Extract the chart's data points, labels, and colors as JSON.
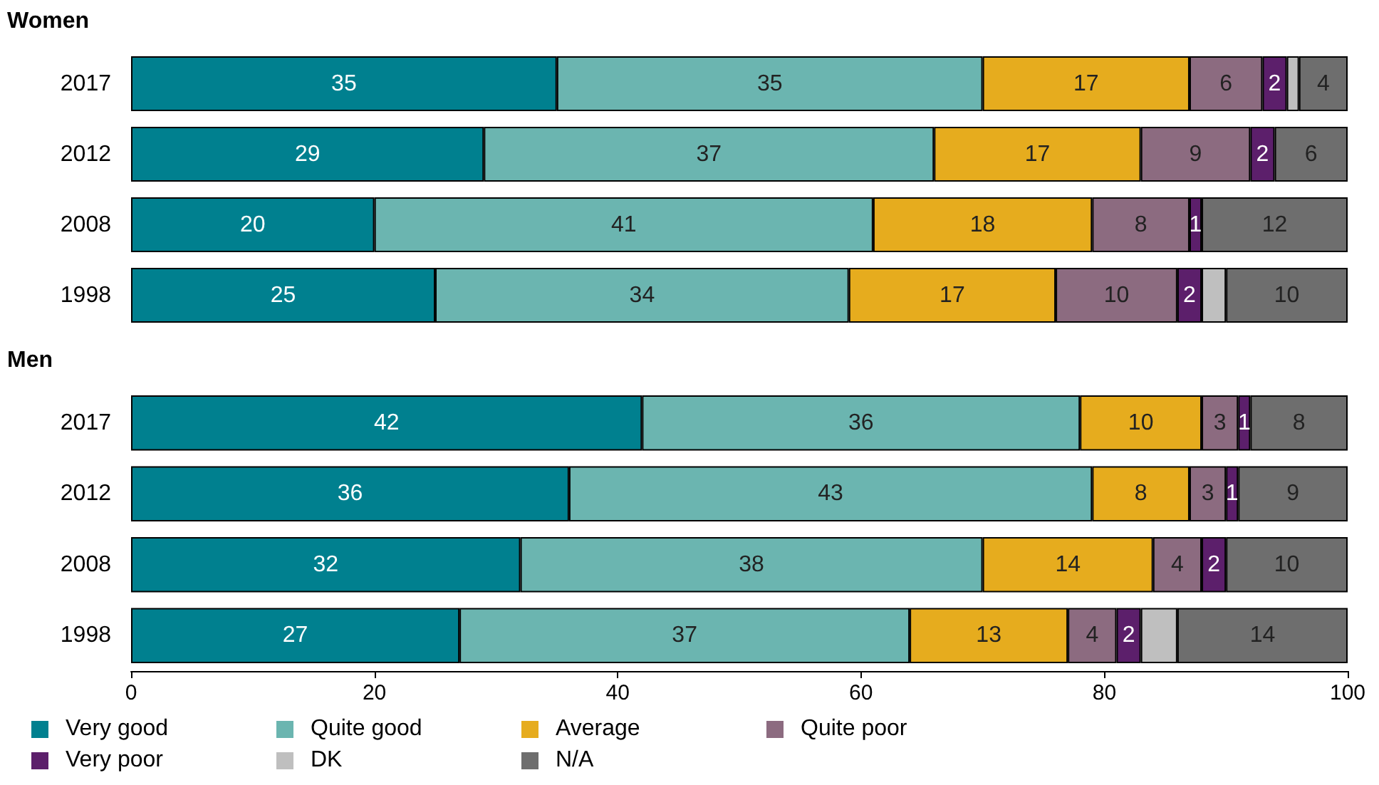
{
  "chart_data": [
    {
      "type": "bar",
      "title": "Women",
      "orientation": "horizontal",
      "stacked": true,
      "categories": [
        "2017",
        "2012",
        "2008",
        "1998"
      ],
      "xlim": [
        0,
        100
      ],
      "xticks": [
        0,
        20,
        40,
        60,
        80,
        100
      ],
      "tick_labels": "y",
      "grid": false,
      "legend": "bottom",
      "series": [
        {
          "name": "Very good",
          "color": "#00808f",
          "values": [
            35,
            29,
            20,
            25
          ],
          "value_labels": [
            "35",
            "29",
            "20",
            "25"
          ]
        },
        {
          "name": "Quite good",
          "color": "#6bb5b0",
          "values": [
            35,
            37,
            41,
            34
          ],
          "value_labels": [
            "35",
            "37",
            "41",
            "34"
          ]
        },
        {
          "name": "Average",
          "color": "#e6ac1e",
          "values": [
            17,
            17,
            18,
            17
          ],
          "value_labels": [
            "17",
            "17",
            "18",
            "17"
          ]
        },
        {
          "name": "Quite poor",
          "color": "#8c6b80",
          "values": [
            6,
            9,
            8,
            10
          ],
          "value_labels": [
            "6",
            "9",
            "8",
            "10"
          ]
        },
        {
          "name": "Very poor",
          "color": "#5c1f6b",
          "values": [
            2,
            2,
            1,
            2
          ],
          "value_labels": [
            "2",
            "2",
            "1",
            "2"
          ]
        },
        {
          "name": "DK",
          "color": "#bfbfbf",
          "values": [
            1,
            0,
            0,
            2
          ],
          "value_labels": [
            null,
            null,
            null,
            null
          ]
        },
        {
          "name": "N/A",
          "color": "#6e6e6e",
          "values": [
            4,
            6,
            12,
            10
          ],
          "value_labels": [
            "4",
            "6",
            "12",
            "10"
          ]
        }
      ]
    },
    {
      "type": "bar",
      "title": "Men",
      "orientation": "horizontal",
      "stacked": true,
      "categories": [
        "2017",
        "2012",
        "2008",
        "1998"
      ],
      "xlim": [
        0,
        100
      ],
      "xticks": [
        0,
        20,
        40,
        60,
        80,
        100
      ],
      "grid": false,
      "legend": "bottom",
      "series": [
        {
          "name": "Very good",
          "color": "#00808f",
          "values": [
            42,
            36,
            32,
            27
          ],
          "value_labels": [
            "42",
            "36",
            "32",
            "27"
          ]
        },
        {
          "name": "Quite good",
          "color": "#6bb5b0",
          "values": [
            36,
            43,
            38,
            37
          ],
          "value_labels": [
            "36",
            "43",
            "38",
            "37"
          ]
        },
        {
          "name": "Average",
          "color": "#e6ac1e",
          "values": [
            10,
            8,
            14,
            13
          ],
          "value_labels": [
            "10",
            "8",
            "14",
            "13"
          ]
        },
        {
          "name": "Quite poor",
          "color": "#8c6b80",
          "values": [
            3,
            3,
            4,
            4
          ],
          "value_labels": [
            "3",
            "3",
            "4",
            "4"
          ]
        },
        {
          "name": "Very poor",
          "color": "#5c1f6b",
          "values": [
            1,
            1,
            2,
            2
          ],
          "value_labels": [
            "1",
            "1",
            "2",
            "2"
          ]
        },
        {
          "name": "DK",
          "color": "#bfbfbf",
          "values": [
            0,
            0,
            0,
            3
          ],
          "value_labels": [
            null,
            null,
            null,
            null
          ]
        },
        {
          "name": "N/A",
          "color": "#6e6e6e",
          "values": [
            8,
            9,
            10,
            14
          ],
          "value_labels": [
            "8",
            "9",
            "10",
            "14"
          ]
        }
      ]
    }
  ]
}
